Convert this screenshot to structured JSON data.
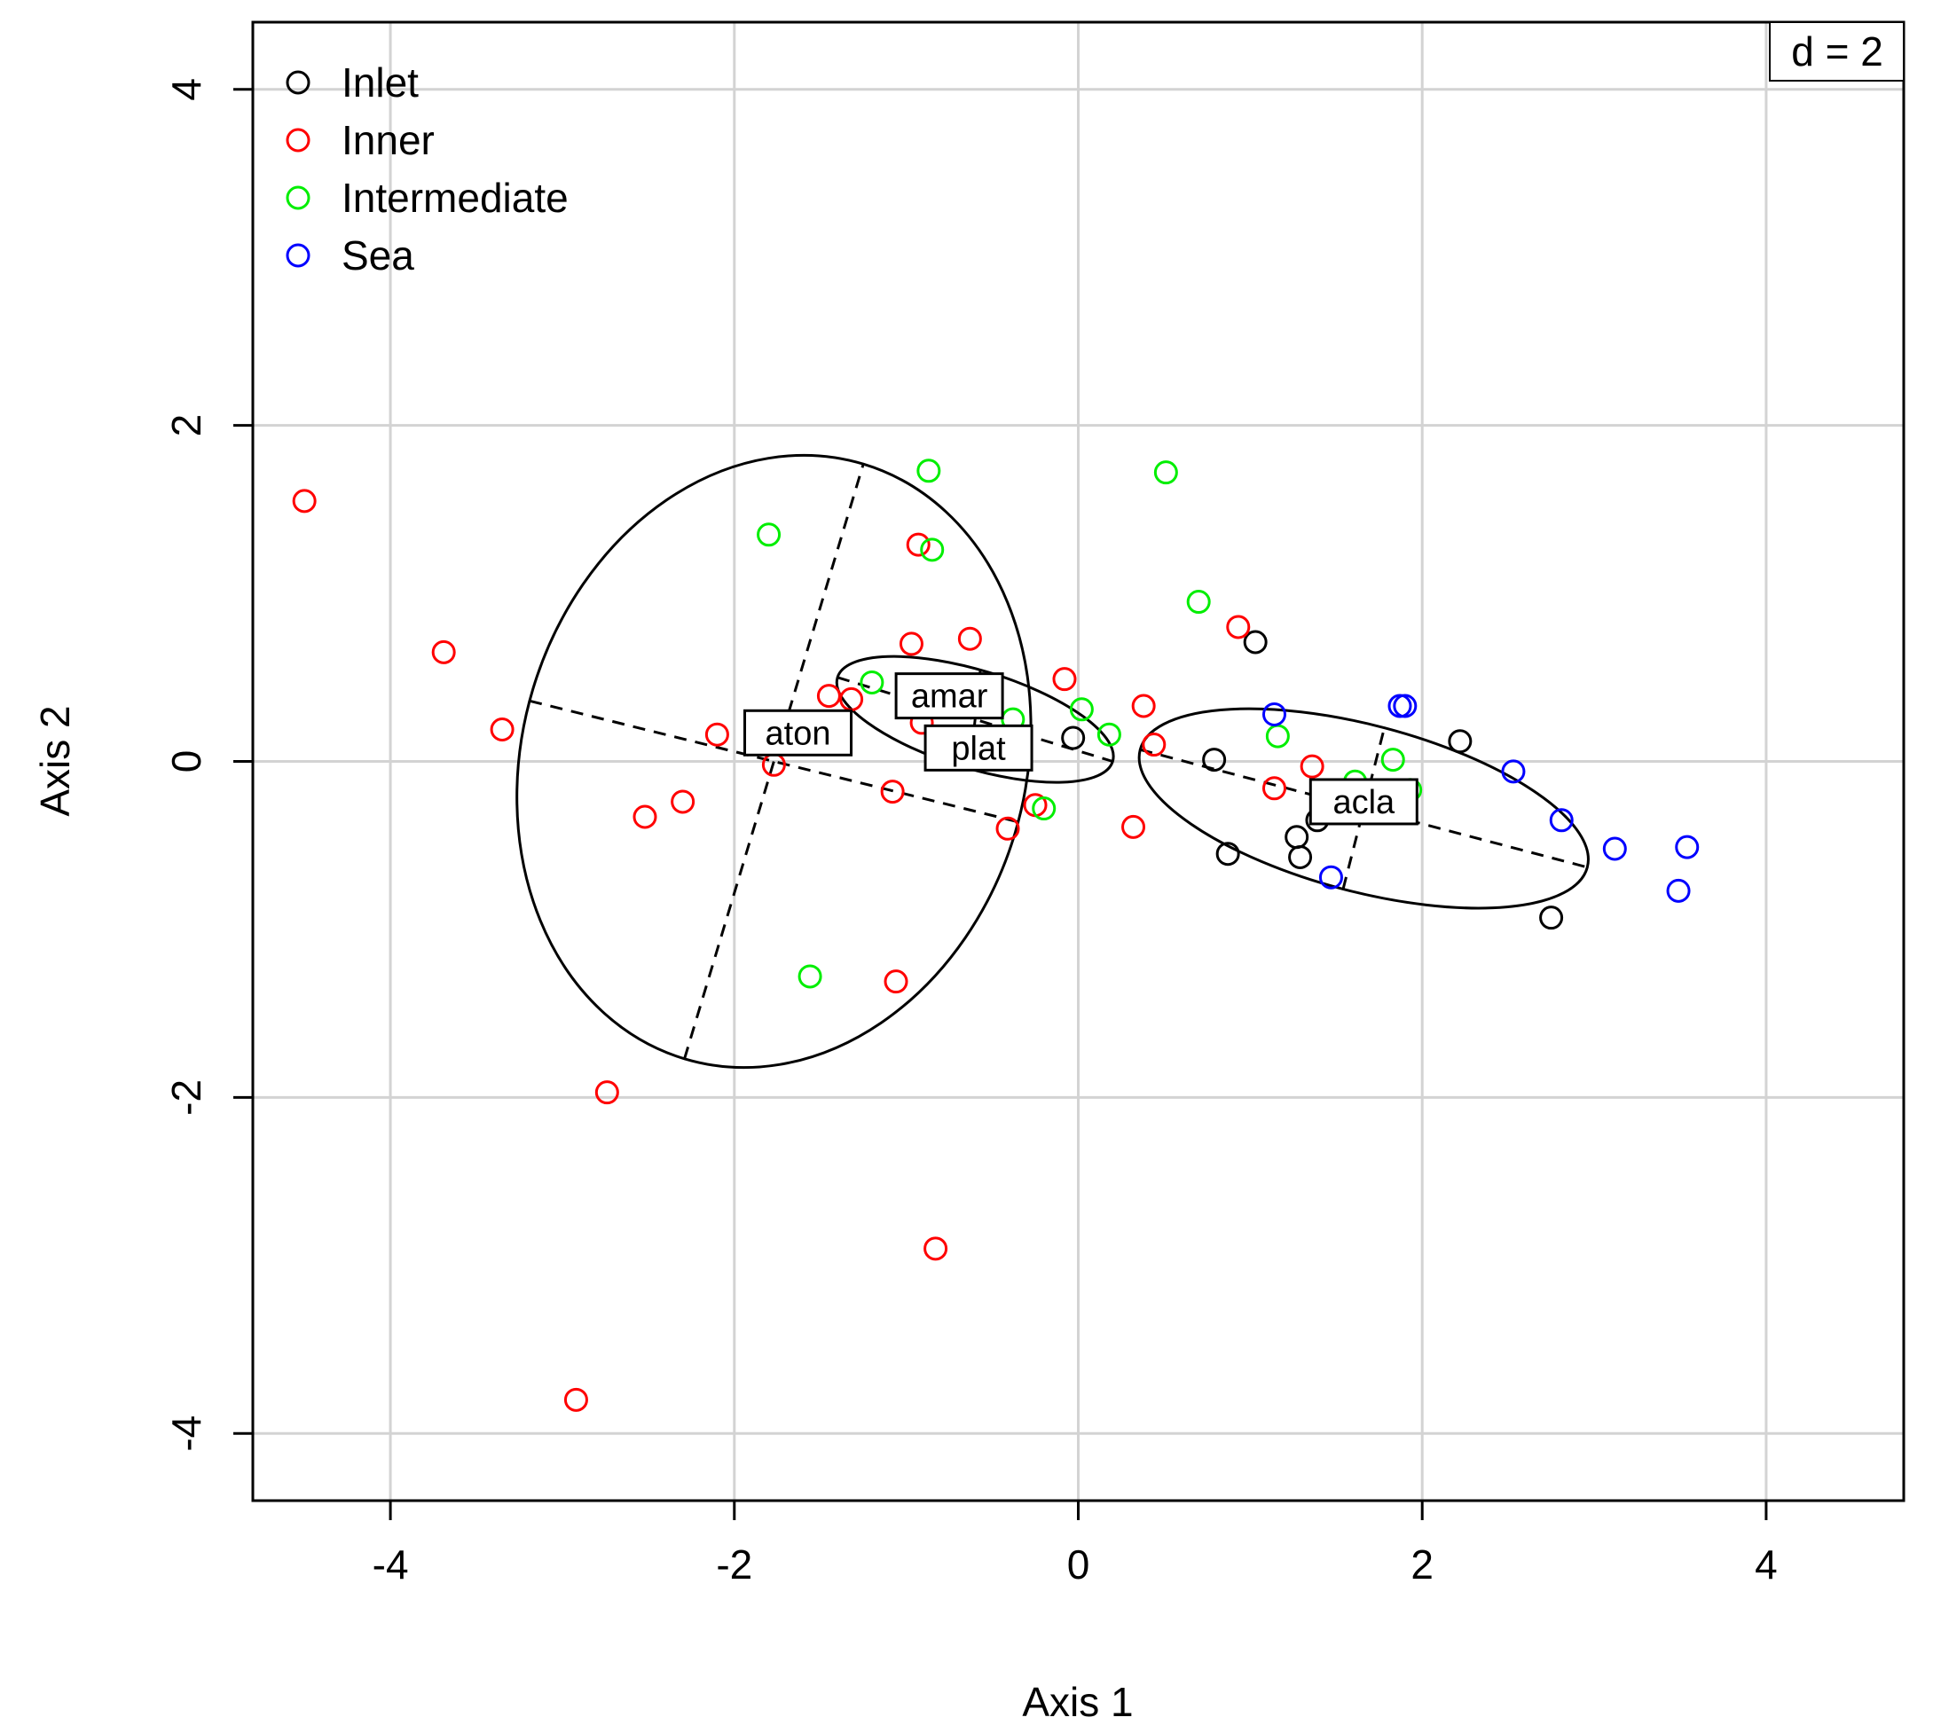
{
  "chart_data": {
    "type": "scatter",
    "title": "",
    "xlabel": "Axis 1",
    "ylabel": "Axis 2",
    "xlim": [
      -4.8,
      4.8
    ],
    "ylim": [
      -4.4,
      4.4
    ],
    "xticks": [
      "-4",
      "-2",
      "0",
      "2",
      "4"
    ],
    "yticks": [
      "-4",
      "-2",
      "0",
      "2",
      "4"
    ],
    "grid_step": "d = 2",
    "grid": true,
    "legend_position": "top-left",
    "series": [
      {
        "name": "Inlet",
        "color": "#000000",
        "points": [
          [
            1.03,
            0.71
          ],
          [
            0.79,
            0.01
          ],
          [
            0.87,
            -0.55
          ],
          [
            1.27,
            -0.45
          ],
          [
            1.29,
            -0.57
          ],
          [
            1.39,
            -0.35
          ],
          [
            2.22,
            0.12
          ],
          [
            2.75,
            -0.93
          ],
          [
            -0.03,
            0.14
          ]
        ]
      },
      {
        "name": "Inner",
        "color": "#ff0000",
        "points": [
          [
            -4.5,
            1.55
          ],
          [
            -3.69,
            0.65
          ],
          [
            -3.35,
            0.19
          ],
          [
            -2.1,
            0.16
          ],
          [
            -2.52,
            -0.33
          ],
          [
            -2.3,
            -0.24
          ],
          [
            -1.77,
            -0.02
          ],
          [
            -1.45,
            0.39
          ],
          [
            -1.32,
            0.37
          ],
          [
            -1.08,
            -0.18
          ],
          [
            -0.97,
            0.7
          ],
          [
            -0.93,
            1.29
          ],
          [
            -0.91,
            0.23
          ],
          [
            -0.63,
            0.73
          ],
          [
            -0.41,
            -0.4
          ],
          [
            -0.25,
            -0.26
          ],
          [
            -0.08,
            0.49
          ],
          [
            0.32,
            -0.39
          ],
          [
            0.38,
            0.33
          ],
          [
            0.44,
            0.1
          ],
          [
            0.93,
            0.8
          ],
          [
            1.14,
            -0.16
          ],
          [
            1.36,
            -0.03
          ],
          [
            -1.06,
            -1.31
          ],
          [
            -2.74,
            -1.97
          ],
          [
            -0.83,
            -2.9
          ],
          [
            -2.92,
            -3.8
          ]
        ]
      },
      {
        "name": "Intermediate",
        "color": "#00ee00",
        "points": [
          [
            -1.8,
            1.35
          ],
          [
            -0.87,
            1.73
          ],
          [
            -0.85,
            1.26
          ],
          [
            -1.2,
            0.47
          ],
          [
            0.51,
            1.72
          ],
          [
            0.7,
            0.95
          ],
          [
            -0.38,
            0.25
          ],
          [
            0.02,
            0.31
          ],
          [
            0.18,
            0.16
          ],
          [
            1.16,
            0.15
          ],
          [
            1.61,
            -0.12
          ],
          [
            1.83,
            0.01
          ],
          [
            1.93,
            -0.17
          ],
          [
            -0.2,
            -0.28
          ],
          [
            -1.56,
            -1.28
          ]
        ]
      },
      {
        "name": "Sea",
        "color": "#0000ff",
        "points": [
          [
            1.14,
            0.28
          ],
          [
            1.87,
            0.33
          ],
          [
            1.9,
            0.33
          ],
          [
            2.53,
            -0.06
          ],
          [
            2.81,
            -0.35
          ],
          [
            3.12,
            -0.52
          ],
          [
            3.49,
            -0.77
          ],
          [
            3.54,
            -0.51
          ],
          [
            1.47,
            -0.69
          ]
        ]
      }
    ],
    "labels": [
      {
        "text": "aton",
        "x": -1.63,
        "y": 0.17
      },
      {
        "text": "amar",
        "x": -0.75,
        "y": 0.39
      },
      {
        "text": "plat",
        "x": -0.58,
        "y": 0.08
      },
      {
        "text": "acla",
        "x": 1.66,
        "y": -0.24
      }
    ],
    "ellipses": [
      {
        "name": "aton",
        "cx": -1.77,
        "cy": 0.0,
        "major_end": [
          -1.25,
          1.77
        ],
        "minor_end": [
          -0.35,
          -0.36
        ]
      },
      {
        "name": "amar",
        "cx": -0.6,
        "cy": 0.25,
        "major_end": [
          0.2,
          0.0
        ],
        "minor_end": [
          -0.57,
          0.54
        ]
      },
      {
        "name": "acla",
        "cx": 1.66,
        "cy": -0.28,
        "major_end": [
          2.96,
          -0.63
        ],
        "minor_end": [
          1.78,
          0.2
        ]
      }
    ]
  }
}
